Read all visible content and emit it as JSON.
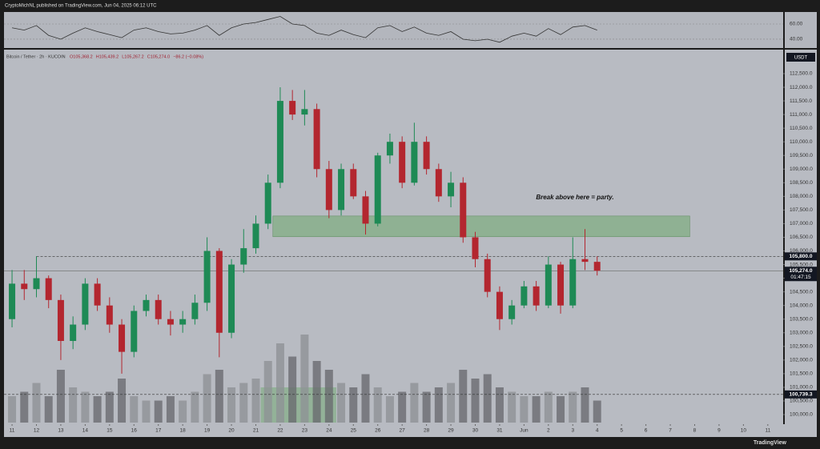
{
  "header": {
    "publisher": "CryptoMichNL published on TradingView.com, Jun 04, 2025 06:12 UTC",
    "logo": "TradingView"
  },
  "chart_data": {
    "type": "candlestick",
    "symbol": "Bitcoin / Tether · 2h · KUCOIN",
    "ohlc": [
      "O105,368.2",
      "H105,439.2",
      "L105,267.2",
      "C105,274.0",
      "−86.2 (−0.08%)"
    ],
    "currency": "USDT",
    "annotation": "Break above here = party.",
    "x": [
      11,
      11.5,
      12,
      12.5,
      13,
      13.5,
      14,
      14.5,
      15,
      15.5,
      16,
      16.5,
      17,
      17.5,
      18,
      18.5,
      19,
      19.5,
      20,
      20.5,
      21,
      21.5,
      22,
      22.5,
      23,
      23.5,
      24,
      24.5,
      25,
      25.5,
      26,
      26.5,
      27,
      27.5,
      28,
      28.5,
      29,
      29.5,
      30,
      30.5,
      31,
      31.5,
      32,
      32.5,
      33,
      33.5,
      34,
      34.5,
      35
    ],
    "candles": [
      [
        103500,
        105300,
        103200,
        104800
      ],
      [
        104800,
        105300,
        104200,
        104600
      ],
      [
        104600,
        105800,
        104300,
        105000
      ],
      [
        105000,
        105100,
        103900,
        104200
      ],
      [
        104200,
        104400,
        102000,
        102700
      ],
      [
        102700,
        103600,
        102400,
        103300
      ],
      [
        103300,
        105000,
        103100,
        104800
      ],
      [
        104800,
        105000,
        103800,
        104000
      ],
      [
        104000,
        104300,
        103000,
        103300
      ],
      [
        103300,
        103500,
        101500,
        102300
      ],
      [
        102300,
        104000,
        102100,
        103800
      ],
      [
        103800,
        104400,
        103600,
        104200
      ],
      [
        104200,
        104400,
        103300,
        103500
      ],
      [
        103500,
        103800,
        102900,
        103300
      ],
      [
        103300,
        103800,
        103000,
        103500
      ],
      [
        103500,
        104400,
        103300,
        104100
      ],
      [
        104100,
        106500,
        103800,
        106000
      ],
      [
        106000,
        106100,
        102100,
        103000
      ],
      [
        103000,
        105700,
        102800,
        105500
      ],
      [
        105500,
        106800,
        105200,
        106100
      ],
      [
        106100,
        107300,
        105900,
        107000
      ],
      [
        107000,
        108800,
        106800,
        108500
      ],
      [
        108500,
        112000,
        108300,
        111500
      ],
      [
        111500,
        111900,
        110800,
        111000
      ],
      [
        111000,
        111900,
        110600,
        111200
      ],
      [
        111200,
        111400,
        108700,
        109000
      ],
      [
        109000,
        109300,
        107200,
        107500
      ],
      [
        107500,
        109200,
        107300,
        109000
      ],
      [
        109000,
        109200,
        107900,
        108000
      ],
      [
        108000,
        108200,
        106600,
        107000
      ],
      [
        107000,
        109600,
        106900,
        109500
      ],
      [
        109500,
        110300,
        109200,
        110000
      ],
      [
        110000,
        110200,
        108300,
        108500
      ],
      [
        108500,
        110700,
        108400,
        110000
      ],
      [
        110000,
        110200,
        108800,
        109000
      ],
      [
        109000,
        109200,
        107800,
        108000
      ],
      [
        108000,
        108900,
        107600,
        108500
      ],
      [
        108500,
        108700,
        106300,
        106500
      ],
      [
        106500,
        106700,
        105400,
        105700
      ],
      [
        105700,
        105900,
        104300,
        104500
      ],
      [
        104500,
        104700,
        103100,
        103500
      ],
      [
        103500,
        104200,
        103300,
        104000
      ],
      [
        104000,
        104900,
        103900,
        104700
      ],
      [
        104700,
        104900,
        103800,
        104000
      ],
      [
        104000,
        105800,
        103900,
        105500
      ],
      [
        105500,
        105600,
        103700,
        104000
      ],
      [
        104000,
        106500,
        103900,
        105700
      ],
      [
        105700,
        106800,
        105300,
        105600
      ],
      [
        105600,
        105800,
        105100,
        105274
      ]
    ],
    "volumes": [
      30,
      35,
      45,
      30,
      60,
      40,
      35,
      30,
      35,
      50,
      30,
      25,
      25,
      30,
      25,
      35,
      55,
      60,
      40,
      45,
      50,
      70,
      90,
      75,
      100,
      70,
      60,
      45,
      40,
      55,
      40,
      30,
      35,
      45,
      35,
      40,
      45,
      60,
      50,
      55,
      40,
      35,
      30,
      30,
      35,
      30,
      35,
      40,
      25
    ],
    "vlim": [
      0,
      100
    ],
    "rsi": [
      55,
      52,
      58,
      45,
      40,
      48,
      55,
      50,
      46,
      42,
      52,
      55,
      50,
      47,
      48,
      52,
      58,
      45,
      55,
      60,
      62,
      66,
      70,
      60,
      58,
      48,
      45,
      52,
      46,
      42,
      55,
      58,
      50,
      56,
      48,
      45,
      50,
      40,
      38,
      40,
      36,
      44,
      48,
      44,
      54,
      46,
      56,
      58,
      52
    ],
    "rsi_lim": [
      28.4,
      75.8
    ],
    "rsi_ticks": [
      {
        "value": 60,
        "label": "60.00"
      },
      {
        "value": 40,
        "label": "40.00"
      }
    ],
    "zone": {
      "x": [
        21.7,
        38.8
      ],
      "y": [
        106520,
        107280
      ]
    },
    "volume_zone": {
      "x": [
        21.2,
        24.3
      ],
      "v": [
        0,
        40
      ]
    },
    "price_labels": [
      {
        "value": 105800,
        "label": "105,800.0"
      },
      {
        "value": 105274,
        "label": "105,274.0",
        "sub": "01:47:15"
      },
      {
        "value": 100739.3,
        "label": "100,739.3"
      }
    ],
    "colors": {
      "up": "#1e8a55",
      "down": "#b3262f"
    },
    "xlim": [
      10.67,
      42.63
    ],
    "ylim": [
      99648,
      113380
    ],
    "xticks": [
      11,
      12,
      13,
      14,
      15,
      16,
      17,
      18,
      19,
      20,
      21,
      22,
      23,
      24,
      25,
      26,
      27,
      28,
      29,
      30,
      31,
      {
        "value": 32,
        "label": "Jun"
      },
      {
        "value": 33,
        "label": "2"
      },
      {
        "value": 34,
        "label": "3"
      },
      {
        "value": 35,
        "label": "4"
      },
      {
        "value": 36,
        "label": "5"
      },
      {
        "value": 37,
        "label": "6"
      },
      {
        "value": 38,
        "label": "7"
      },
      {
        "value": 39,
        "label": "8"
      },
      {
        "value": 40,
        "label": "9"
      },
      {
        "value": 41,
        "label": "10"
      },
      {
        "value": 42,
        "label": "11"
      }
    ],
    "yticks": [
      {
        "value": 100000,
        "label": "100,000.0"
      },
      {
        "value": 100500,
        "label": "100,500.0"
      },
      {
        "value": 101000,
        "label": "101,000.0"
      },
      {
        "value": 101500,
        "label": "101,500.0"
      },
      {
        "value": 102000,
        "label": "102,000.0"
      },
      {
        "value": 102500,
        "label": "102,500.0"
      },
      {
        "value": 103000,
        "label": "103,000.0"
      },
      {
        "value": 103500,
        "label": "103,500.0"
      },
      {
        "value": 104000,
        "label": "104,000.0"
      },
      {
        "value": 104500,
        "label": "104,500.0"
      },
      {
        "value": 105000,
        "label": "105,000.0"
      },
      {
        "value": 105500,
        "label": "105,500.0"
      },
      {
        "value": 106000,
        "label": "106,000.0"
      },
      {
        "value": 106500,
        "label": "106,500.0"
      },
      {
        "value": 107000,
        "label": "107,000.0"
      },
      {
        "value": 107500,
        "label": "107,500.0"
      },
      {
        "value": 108000,
        "label": "108,000.0"
      },
      {
        "value": 108500,
        "label": "108,500.0"
      },
      {
        "value": 109000,
        "label": "109,000.0"
      },
      {
        "value": 109500,
        "label": "109,500.0"
      },
      {
        "value": 110000,
        "label": "110,000.0"
      },
      {
        "value": 110500,
        "label": "110,500.0"
      },
      {
        "value": 111000,
        "label": "111,000.0"
      },
      {
        "value": 111500,
        "label": "111,500.0"
      },
      {
        "value": 112000,
        "label": "112,000.0"
      },
      {
        "value": 112500,
        "label": "112,500.0"
      }
    ]
  }
}
